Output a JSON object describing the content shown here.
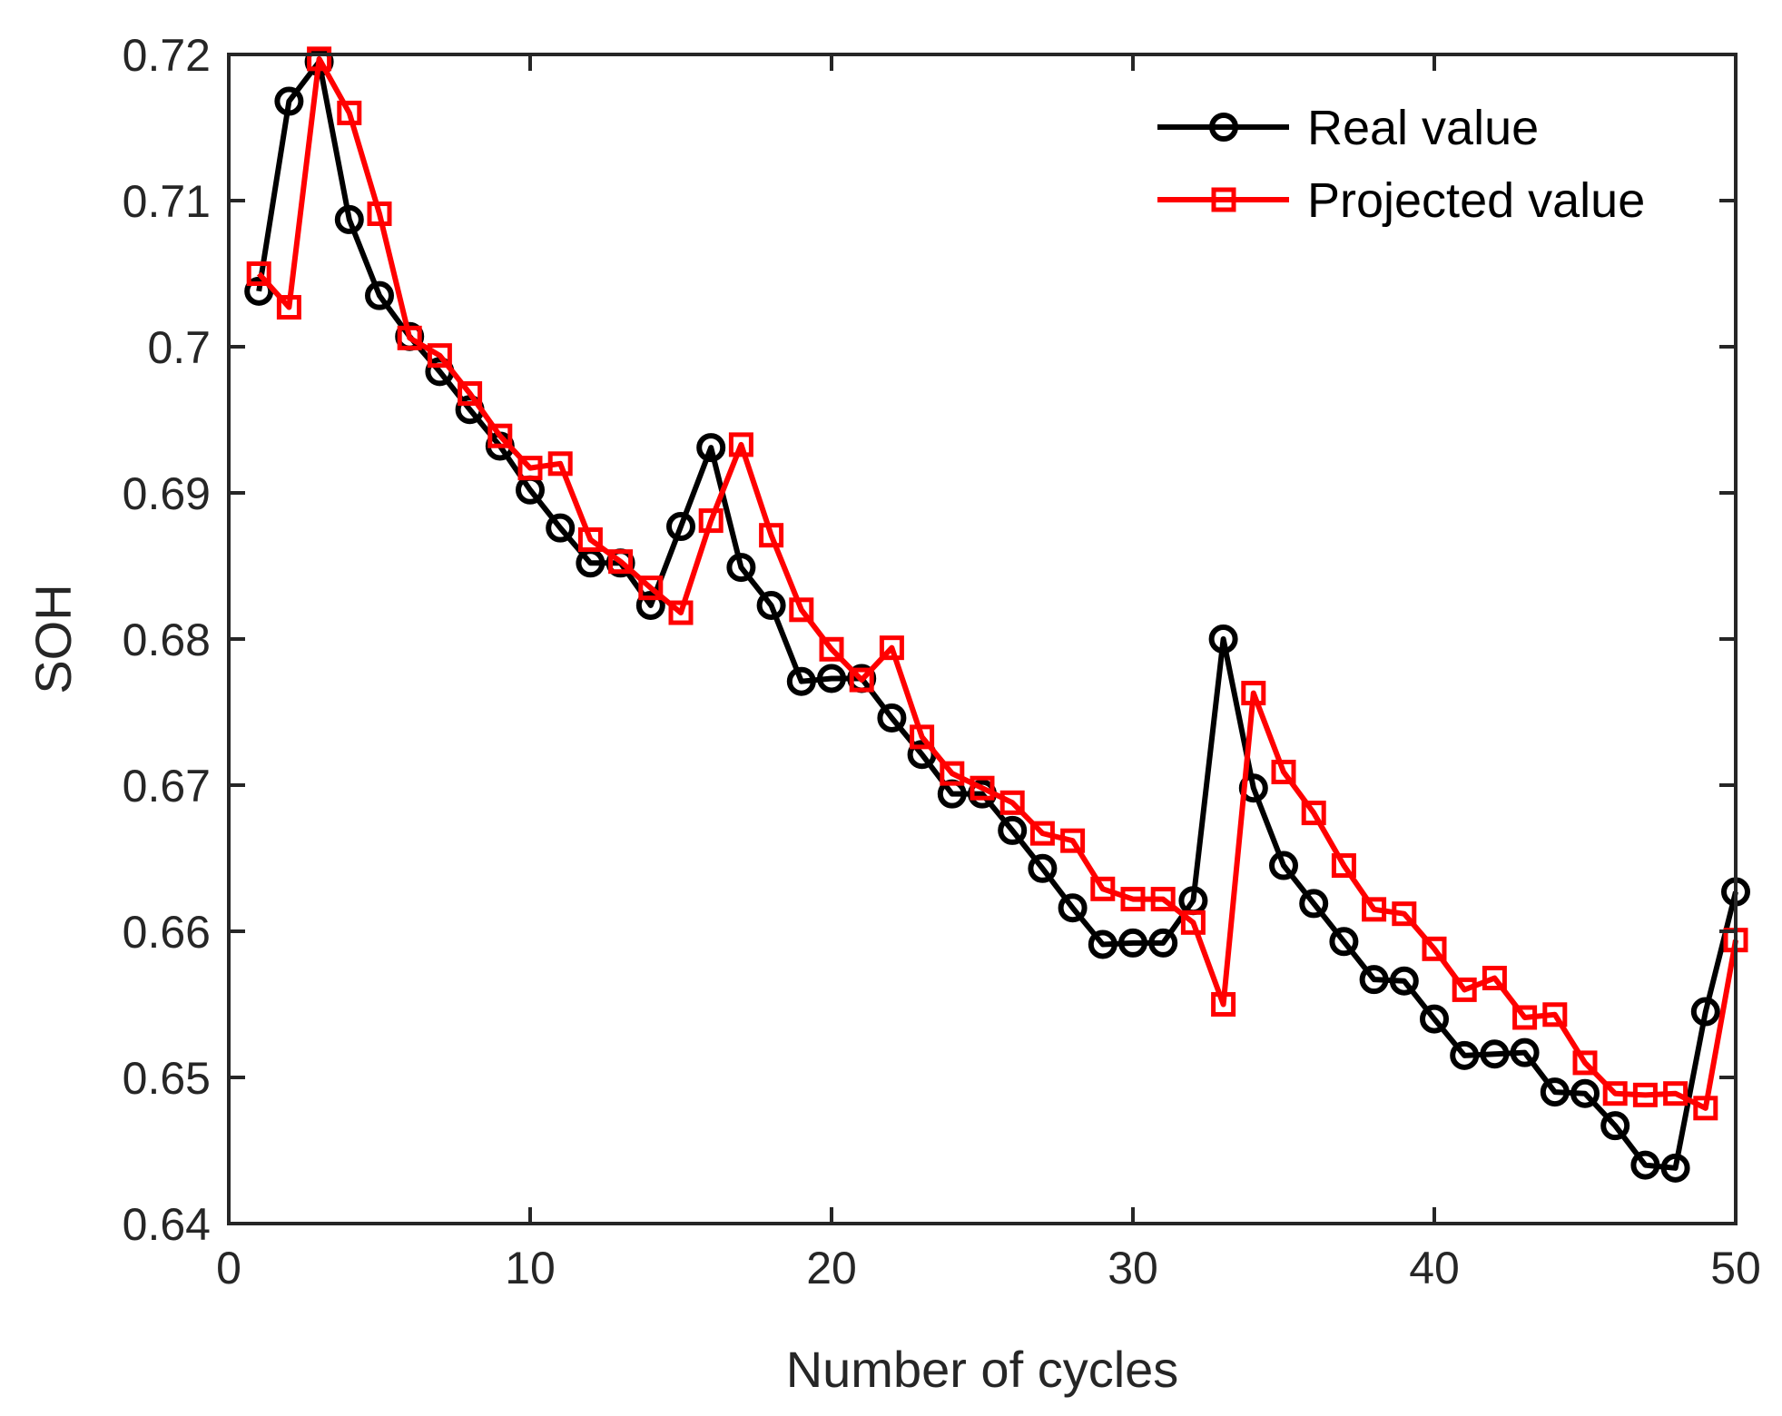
{
  "chart_data": {
    "type": "line",
    "title": "",
    "xlabel": "Number of cycles",
    "ylabel": "SOH",
    "xlim": [
      0,
      50
    ],
    "ylim": [
      0.64,
      0.72
    ],
    "xticks": [
      0,
      10,
      20,
      30,
      40,
      50
    ],
    "xtick_labels": [
      "0",
      "10",
      "20",
      "30",
      "40",
      "50"
    ],
    "yticks": [
      0.64,
      0.65,
      0.66,
      0.67,
      0.68,
      0.69,
      0.7,
      0.71,
      0.72
    ],
    "ytick_labels": [
      "0.64",
      "0.65",
      "0.66",
      "0.67",
      "0.68",
      "0.69",
      "0.7",
      "0.71",
      "0.72"
    ],
    "grid": false,
    "legend_position": "top-right",
    "x": [
      1,
      2,
      3,
      4,
      5,
      6,
      7,
      8,
      9,
      10,
      11,
      12,
      13,
      14,
      15,
      16,
      17,
      18,
      19,
      20,
      21,
      22,
      23,
      24,
      25,
      26,
      27,
      28,
      29,
      30,
      31,
      32,
      33,
      34,
      35,
      36,
      37,
      38,
      39,
      40,
      41,
      42,
      43,
      44,
      45,
      46,
      47,
      48,
      49,
      50
    ],
    "series": [
      {
        "name": "Real value",
        "color": "#000000",
        "marker": "circle",
        "values": [
          0.7038,
          0.7168,
          0.7195,
          0.7087,
          0.7035,
          0.7007,
          0.6983,
          0.6957,
          0.6932,
          0.6902,
          0.6876,
          0.6852,
          0.6852,
          0.6823,
          0.6877,
          0.6931,
          0.6849,
          0.6823,
          0.6771,
          0.6773,
          0.6773,
          0.6746,
          0.6721,
          0.6694,
          0.6694,
          0.6669,
          0.6643,
          0.6616,
          0.6591,
          0.6592,
          0.6592,
          0.6621,
          0.68,
          0.6698,
          0.6645,
          0.6619,
          0.6593,
          0.6567,
          0.6566,
          0.654,
          0.6515,
          0.6516,
          0.6517,
          0.649,
          0.6489,
          0.6467,
          0.644,
          0.6438,
          0.6545,
          0.6627
        ]
      },
      {
        "name": "Projected value",
        "color": "#ff0000",
        "marker": "square",
        "values": [
          0.705,
          0.7027,
          0.7197,
          0.716,
          0.7091,
          0.7006,
          0.6994,
          0.6968,
          0.6939,
          0.6917,
          0.692,
          0.6868,
          0.6853,
          0.6835,
          0.6818,
          0.6881,
          0.6933,
          0.6871,
          0.682,
          0.6793,
          0.6772,
          0.6794,
          0.6733,
          0.6708,
          0.6698,
          0.6688,
          0.6667,
          0.6662,
          0.6629,
          0.6622,
          0.6622,
          0.6606,
          0.655,
          0.6763,
          0.6709,
          0.6681,
          0.6645,
          0.6615,
          0.6612,
          0.6588,
          0.656,
          0.6568,
          0.6541,
          0.6543,
          0.651,
          0.6489,
          0.6488,
          0.6489,
          0.6479,
          0.6594
        ]
      }
    ]
  }
}
